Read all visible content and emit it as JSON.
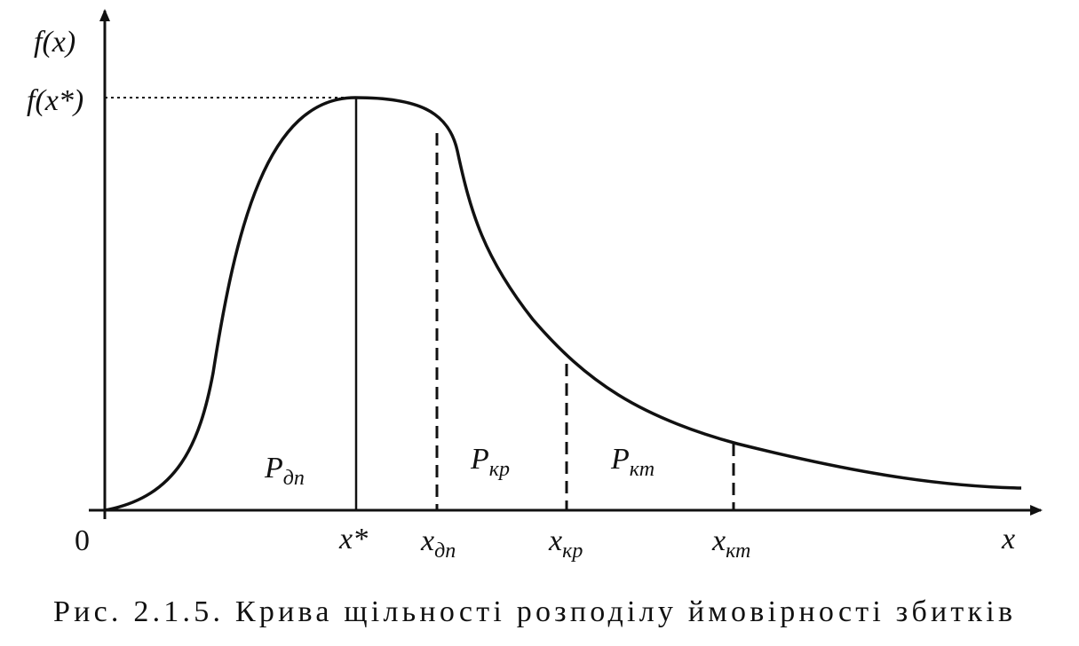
{
  "diagram": {
    "y_axis_label": "f(x)",
    "peak_label": "f(x*)",
    "origin_label": "0",
    "x_axis_label": "x",
    "mode_label": "x*",
    "points": [
      {
        "base": "x",
        "sub": "дп"
      },
      {
        "base": "x",
        "sub": "кр"
      },
      {
        "base": "x",
        "sub": "кт"
      }
    ],
    "regions": [
      {
        "base": "P",
        "sub": "дп"
      },
      {
        "base": "P",
        "sub": "кр"
      },
      {
        "base": "P",
        "sub": "кт"
      }
    ],
    "caption": "Рис. 2.1.5. Крива щільності розподілу ймовірності збитків"
  }
}
